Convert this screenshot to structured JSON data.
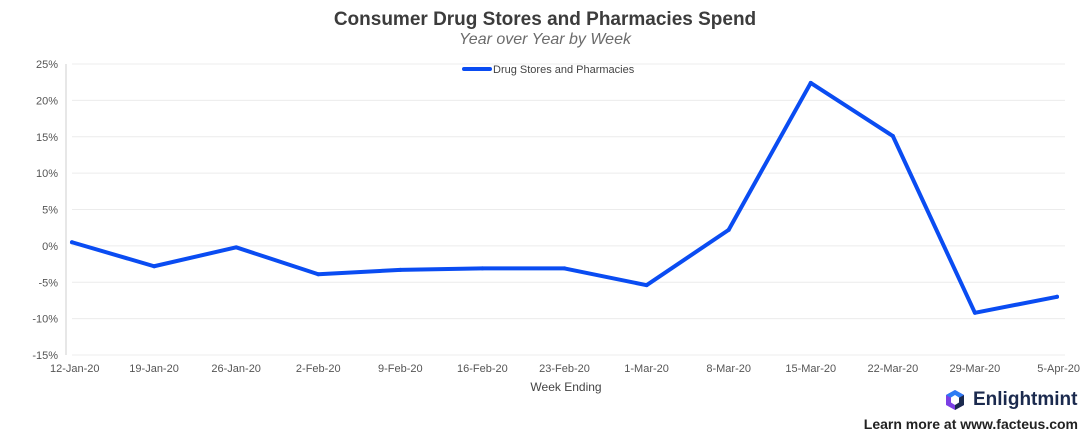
{
  "chart_data": {
    "type": "line",
    "title": "Consumer Drug Stores and Pharmacies Spend",
    "subtitle": "Year over Year by Week",
    "xlabel": "Week Ending",
    "ylabel": "",
    "categories": [
      "12-Jan-20",
      "19-Jan-20",
      "26-Jan-20",
      "2-Feb-20",
      "9-Feb-20",
      "16-Feb-20",
      "23-Feb-20",
      "1-Mar-20",
      "8-Mar-20",
      "15-Mar-20",
      "22-Mar-20",
      "29-Mar-20",
      "5-Apr-20"
    ],
    "series": [
      {
        "name": "Drug Stores and Pharmacies",
        "color": "#0a4cf2",
        "values": [
          0.5,
          -2.8,
          -0.2,
          -3.9,
          -3.3,
          -3.1,
          -3.1,
          -5.4,
          2.2,
          22.4,
          15.1,
          -9.2,
          -7.0
        ]
      }
    ],
    "ylim": [
      -15,
      25
    ],
    "yticks": [
      "-15%",
      "-10%",
      "-5%",
      "0%",
      "5%",
      "10%",
      "15%",
      "20%",
      "25%"
    ],
    "grid": true,
    "legend_position": "top-center"
  },
  "branding": {
    "name": "Enlightmint",
    "footer": "Learn more at www.facteus.com",
    "logo_icon": "hexagon-logo-icon"
  }
}
